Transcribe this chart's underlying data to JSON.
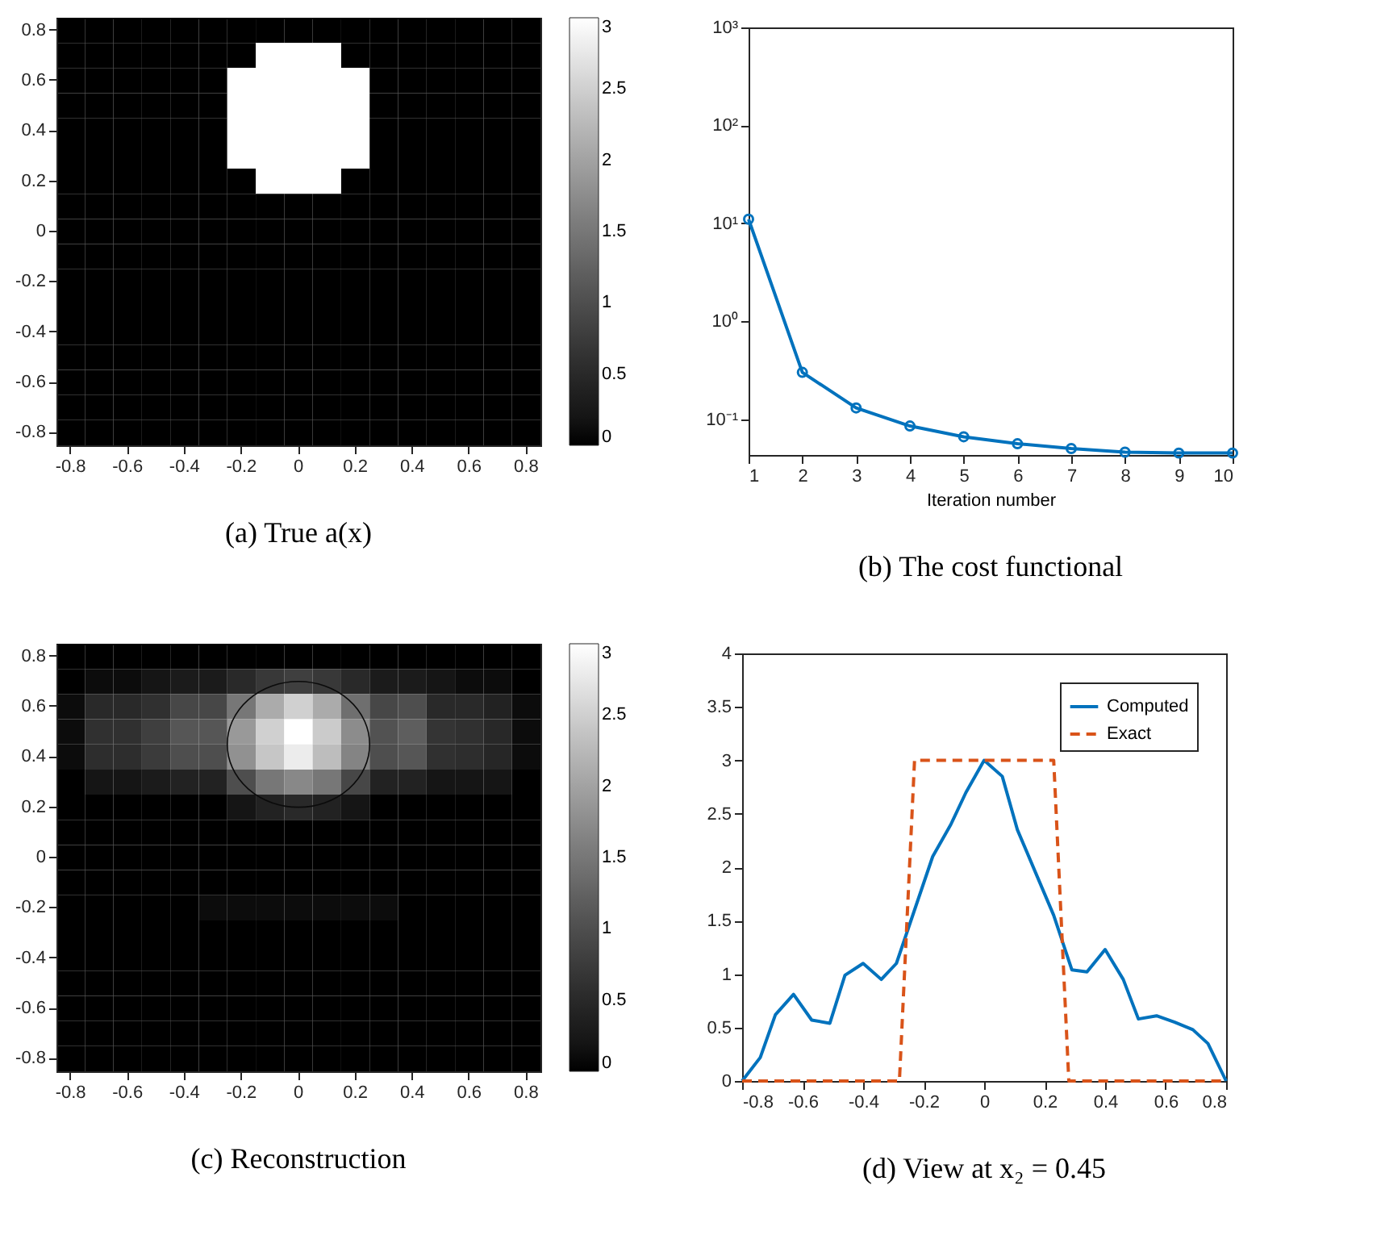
{
  "chart_data": [
    {
      "type": "heatmap",
      "title": "(a) True a(x)",
      "categories": [
        "-0.8",
        null,
        "-0.6",
        null,
        "-0.4",
        null,
        "-0.2",
        null,
        "0",
        null,
        "0.2",
        null,
        "0.4",
        null,
        "0.6",
        null,
        "0.8"
      ],
      "y_categories": [
        "0.8",
        null,
        "0.6",
        null,
        "0.4",
        null,
        "0.2",
        null,
        "0",
        null,
        "-0.2",
        null,
        "-0.4",
        null,
        "-0.6",
        null,
        "-0.8"
      ],
      "clim": [
        0,
        3
      ],
      "cticks": [
        0,
        0.5,
        1,
        1.5,
        2,
        2.5,
        3
      ],
      "cells": [
        [
          0,
          0,
          0,
          0,
          0,
          0,
          0,
          0,
          0,
          0,
          0,
          0,
          0,
          0,
          0,
          0,
          0
        ],
        [
          0,
          0,
          0,
          0,
          0,
          0,
          0,
          3,
          3,
          3,
          0,
          0,
          0,
          0,
          0,
          0,
          0
        ],
        [
          0,
          0,
          0,
          0,
          0,
          0,
          3,
          3,
          3,
          3,
          3,
          0,
          0,
          0,
          0,
          0,
          0
        ],
        [
          0,
          0,
          0,
          0,
          0,
          0,
          3,
          3,
          3,
          3,
          3,
          0,
          0,
          0,
          0,
          0,
          0
        ],
        [
          0,
          0,
          0,
          0,
          0,
          0,
          3,
          3,
          3,
          3,
          3,
          0,
          0,
          0,
          0,
          0,
          0
        ],
        [
          0,
          0,
          0,
          0,
          0,
          0,
          3,
          3,
          3,
          3,
          3,
          0,
          0,
          0,
          0,
          0,
          0
        ],
        [
          0,
          0,
          0,
          0,
          0,
          0,
          0,
          3,
          3,
          3,
          0,
          0,
          0,
          0,
          0,
          0,
          0
        ],
        [
          0,
          0,
          0,
          0,
          0,
          0,
          0,
          0,
          0,
          0,
          0,
          0,
          0,
          0,
          0,
          0,
          0
        ],
        [
          0,
          0,
          0,
          0,
          0,
          0,
          0,
          0,
          0,
          0,
          0,
          0,
          0,
          0,
          0,
          0,
          0
        ],
        [
          0,
          0,
          0,
          0,
          0,
          0,
          0,
          0,
          0,
          0,
          0,
          0,
          0,
          0,
          0,
          0,
          0
        ],
        [
          0,
          0,
          0,
          0,
          0,
          0,
          0,
          0,
          0,
          0,
          0,
          0,
          0,
          0,
          0,
          0,
          0
        ],
        [
          0,
          0,
          0,
          0,
          0,
          0,
          0,
          0,
          0,
          0,
          0,
          0,
          0,
          0,
          0,
          0,
          0
        ],
        [
          0,
          0,
          0,
          0,
          0,
          0,
          0,
          0,
          0,
          0,
          0,
          0,
          0,
          0,
          0,
          0,
          0
        ],
        [
          0,
          0,
          0,
          0,
          0,
          0,
          0,
          0,
          0,
          0,
          0,
          0,
          0,
          0,
          0,
          0,
          0
        ],
        [
          0,
          0,
          0,
          0,
          0,
          0,
          0,
          0,
          0,
          0,
          0,
          0,
          0,
          0,
          0,
          0,
          0
        ],
        [
          0,
          0,
          0,
          0,
          0,
          0,
          0,
          0,
          0,
          0,
          0,
          0,
          0,
          0,
          0,
          0,
          0
        ],
        [
          0,
          0,
          0,
          0,
          0,
          0,
          0,
          0,
          0,
          0,
          0,
          0,
          0,
          0,
          0,
          0,
          0
        ]
      ]
    },
    {
      "type": "line",
      "title": "(b) The cost functional",
      "xlabel": "Iteration number",
      "x": [
        1,
        2,
        3,
        4,
        5,
        6,
        7,
        8,
        9,
        10
      ],
      "values": [
        11,
        0.3,
        0.13,
        0.085,
        0.066,
        0.056,
        0.05,
        0.046,
        0.045,
        0.045
      ],
      "color": "#0072bd",
      "marker": "circle",
      "line_style": "solid",
      "log": "y",
      "xlim": [
        1,
        10
      ],
      "xticks": [
        1,
        2,
        3,
        4,
        5,
        6,
        7,
        8,
        9,
        10
      ],
      "ylim": [
        0.043,
        1000
      ],
      "yticks": [
        {
          "value": 0.1,
          "label": "10⁻¹"
        },
        {
          "value": 1,
          "label": "10⁰"
        },
        {
          "value": 10,
          "label": "10¹"
        },
        {
          "value": 100,
          "label": "10²"
        },
        {
          "value": 1000,
          "label": "10³"
        }
      ]
    },
    {
      "type": "heatmap",
      "title": "(c) Reconstruction",
      "categories": [
        "-0.8",
        null,
        "-0.6",
        null,
        "-0.4",
        null,
        "-0.2",
        null,
        "0",
        null,
        "0.2",
        null,
        "0.4",
        null,
        "0.6",
        null,
        "0.8"
      ],
      "y_categories": [
        "0.8",
        null,
        "0.6",
        null,
        "0.4",
        null,
        "0.2",
        null,
        "0",
        null,
        "-0.2",
        null,
        "-0.4",
        null,
        "-0.6",
        null,
        "-0.8"
      ],
      "clim": [
        0,
        3
      ],
      "cticks": [
        0,
        0.5,
        1,
        1.5,
        2,
        2.5,
        3
      ],
      "cells": [
        [
          0,
          0,
          0,
          0,
          0,
          0,
          0,
          0,
          0,
          0,
          0,
          0,
          0,
          0,
          0,
          0,
          0
        ],
        [
          0,
          0.1,
          0.1,
          0.2,
          0.3,
          0.3,
          0.5,
          0.7,
          0.8,
          0.7,
          0.5,
          0.3,
          0.3,
          0.2,
          0.1,
          0.1,
          0
        ],
        [
          0.1,
          0.5,
          0.5,
          0.6,
          0.9,
          0.9,
          1.5,
          2.1,
          2.5,
          2.1,
          1.4,
          0.9,
          1,
          0.5,
          0.5,
          0.4,
          0.1
        ],
        [
          0.1,
          0.6,
          0.6,
          0.8,
          1.1,
          1.1,
          1.9,
          2.5,
          3,
          2.45,
          1.75,
          1.04,
          1.2,
          0.65,
          0.6,
          0.48,
          0.1
        ],
        [
          0.1,
          0.55,
          0.55,
          0.75,
          1,
          1,
          1.8,
          2.4,
          2.8,
          2.3,
          1.65,
          1,
          1.1,
          0.6,
          0.55,
          0.45,
          0.1
        ],
        [
          0,
          0.2,
          0.2,
          0.3,
          0.4,
          0.4,
          1,
          1.5,
          1.7,
          1.5,
          0.9,
          0.4,
          0.4,
          0.2,
          0.2,
          0.2,
          0
        ],
        [
          0,
          0,
          0,
          0,
          0,
          0,
          0.2,
          0.4,
          0.5,
          0.4,
          0.2,
          0,
          0,
          0,
          0,
          0,
          0
        ],
        [
          0,
          0,
          0,
          0,
          0,
          0,
          0,
          0,
          0,
          0,
          0,
          0,
          0,
          0,
          0,
          0,
          0
        ],
        [
          0,
          0,
          0,
          0,
          0,
          0,
          0,
          0,
          0,
          0,
          0,
          0,
          0,
          0,
          0,
          0,
          0
        ],
        [
          0,
          0,
          0,
          0,
          0,
          0,
          0,
          0,
          0,
          0,
          0,
          0,
          0,
          0,
          0,
          0,
          0
        ],
        [
          0,
          0,
          0,
          0,
          0,
          0.1,
          0.1,
          0.1,
          0.1,
          0.1,
          0.1,
          0.1,
          0,
          0,
          0,
          0,
          0
        ],
        [
          0,
          0,
          0,
          0,
          0,
          0,
          0,
          0,
          0,
          0,
          0,
          0,
          0,
          0,
          0,
          0,
          0
        ],
        [
          0,
          0,
          0,
          0,
          0,
          0,
          0,
          0,
          0,
          0,
          0,
          0,
          0,
          0,
          0,
          0,
          0
        ],
        [
          0,
          0,
          0,
          0,
          0,
          0,
          0,
          0,
          0,
          0,
          0,
          0,
          0,
          0,
          0,
          0,
          0
        ],
        [
          0,
          0,
          0,
          0,
          0,
          0,
          0,
          0,
          0,
          0,
          0,
          0,
          0,
          0,
          0,
          0,
          0
        ],
        [
          0,
          0,
          0,
          0,
          0,
          0,
          0,
          0,
          0,
          0,
          0,
          0,
          0,
          0,
          0,
          0,
          0
        ],
        [
          0,
          0,
          0,
          0,
          0,
          0,
          0,
          0,
          0,
          0,
          0,
          0,
          0,
          0,
          0,
          0,
          0
        ]
      ]
    },
    {
      "type": "line",
      "title": "(d) View at x₂ = 0.45",
      "legend": "top right",
      "xlim": [
        -0.8,
        0.8
      ],
      "xticks": [
        -0.8,
        -0.6,
        -0.4,
        -0.2,
        0,
        0.2,
        0.4,
        0.6,
        0.8
      ],
      "ylim": [
        0,
        4
      ],
      "yticks": [
        0,
        0.5,
        1,
        1.5,
        2,
        2.5,
        3,
        3.5,
        4
      ],
      "series": [
        {
          "name": "Computed",
          "color": "#0072bd",
          "line_style": "solid",
          "x": [
            -0.8,
            -0.74,
            -0.69,
            -0.63,
            -0.57,
            -0.51,
            -0.46,
            -0.4,
            -0.34,
            -0.29,
            -0.23,
            -0.17,
            -0.11,
            -0.06,
            0,
            0.06,
            0.11,
            0.17,
            0.23,
            0.29,
            0.34,
            0.4,
            0.46,
            0.51,
            0.57,
            0.63,
            0.69,
            0.74,
            0.8
          ],
          "values": [
            0,
            0.22,
            0.62,
            0.81,
            0.57,
            0.54,
            0.99,
            1.1,
            0.95,
            1.1,
            1.6,
            2.1,
            2.4,
            2.7,
            3,
            2.85,
            2.35,
            1.95,
            1.55,
            1.04,
            1.02,
            1.23,
            0.95,
            0.58,
            0.61,
            0.55,
            0.48,
            0.35,
            0
          ]
        },
        {
          "name": "Exact",
          "color": "#d95319",
          "line_style": "dashed",
          "x": [
            -0.8,
            -0.28,
            -0.23,
            0.23,
            0.28,
            0.8
          ],
          "values": [
            0,
            0,
            3,
            3,
            0,
            0
          ]
        }
      ]
    }
  ]
}
